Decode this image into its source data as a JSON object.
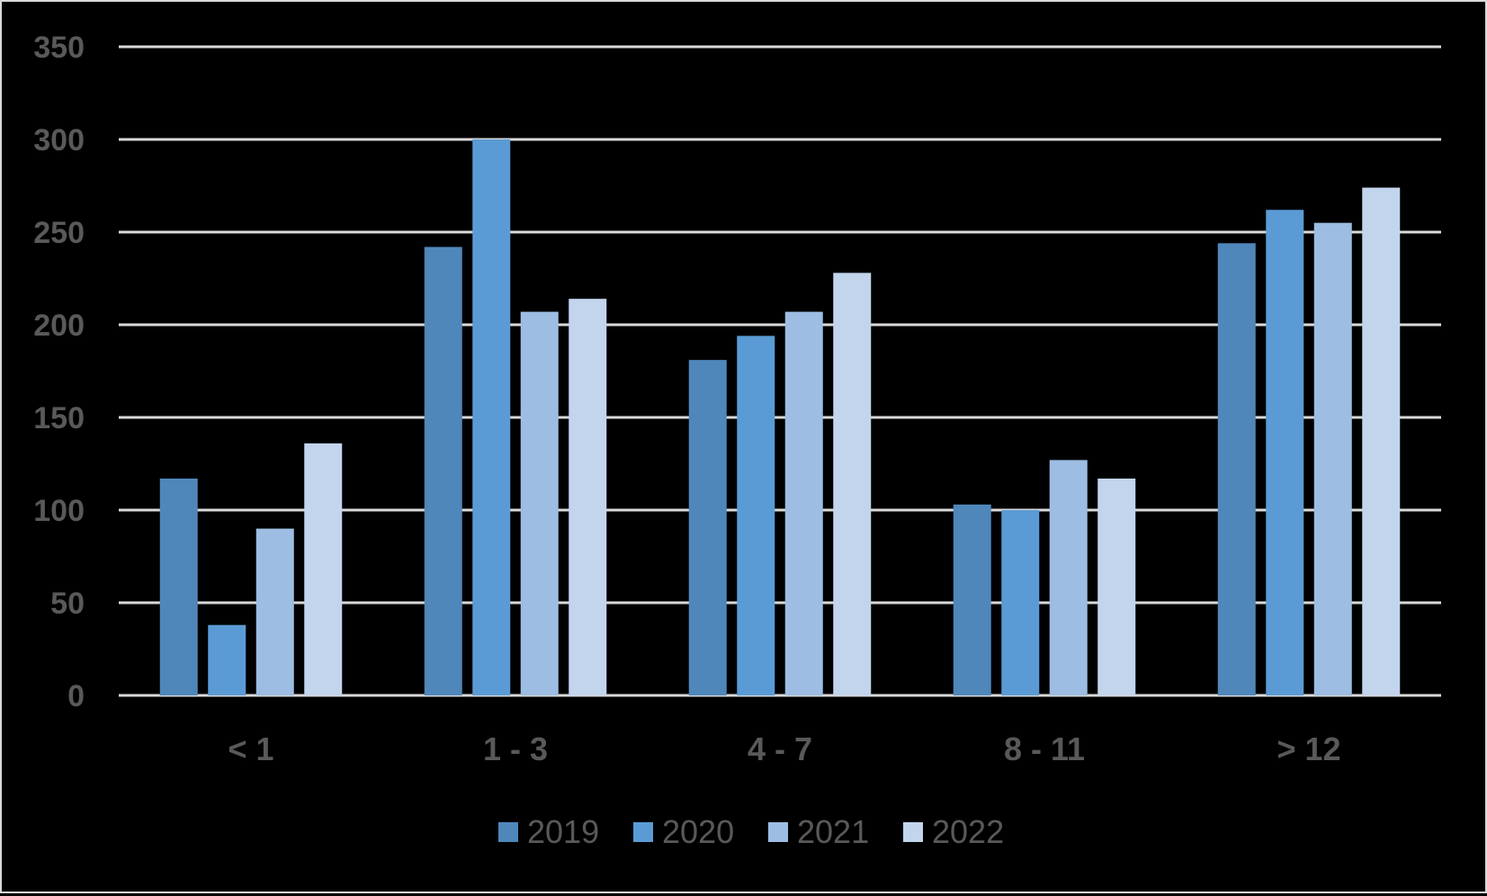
{
  "chart_data": {
    "type": "bar",
    "categories": [
      "< 1",
      "1 - 3",
      "4 - 7",
      "8 - 11",
      "> 12"
    ],
    "series": [
      {
        "name": "2019",
        "values": [
          117,
          242,
          181,
          103,
          244
        ],
        "color": "#4f87bb"
      },
      {
        "name": "2020",
        "values": [
          38,
          300,
          194,
          100,
          262
        ],
        "color": "#5b9bd5"
      },
      {
        "name": "2021",
        "values": [
          90,
          207,
          207,
          127,
          255
        ],
        "color": "#9dbde2"
      },
      {
        "name": "2022",
        "values": [
          136,
          214,
          228,
          117,
          274
        ],
        "color": "#c2d5ed"
      }
    ],
    "ylim": [
      0,
      350
    ],
    "yticks": [
      "0",
      "50",
      "100",
      "150",
      "200",
      "250",
      "300",
      "350"
    ],
    "grid": true,
    "legend_position": "bottom",
    "background": "#000000",
    "gridline_color": "#d9d9d9",
    "label_color": "#595959"
  }
}
